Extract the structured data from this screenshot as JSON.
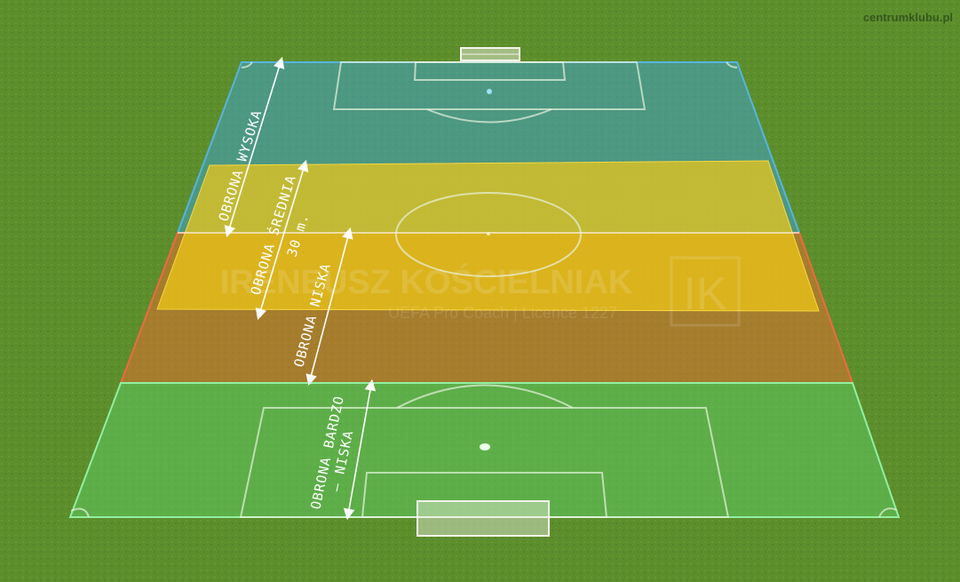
{
  "credit": "centrumklubu.pl",
  "watermark": {
    "name": "IRENEUSZ KOŚCIELNIAK",
    "subtitle": "UEFA Pro Coach  |  Licence 1227",
    "logo": "IK"
  },
  "zones": [
    {
      "id": "high",
      "label": "OBRONA WYSOKA",
      "color": "#3fa0c8"
    },
    {
      "id": "mid",
      "label": "OBRONA ŚREDNIA",
      "color": "#e8c020"
    },
    {
      "id": "low",
      "label": "OBRONA NISKA",
      "color": "#e07030"
    },
    {
      "id": "verylow",
      "label": "OBRONA BARDZO",
      "label2": "– NISKA",
      "color": "#5cc860"
    }
  ],
  "distance_label": "30 m.",
  "colors": {
    "grass": "#5a8a2a",
    "lines": "#e8f2e0"
  }
}
